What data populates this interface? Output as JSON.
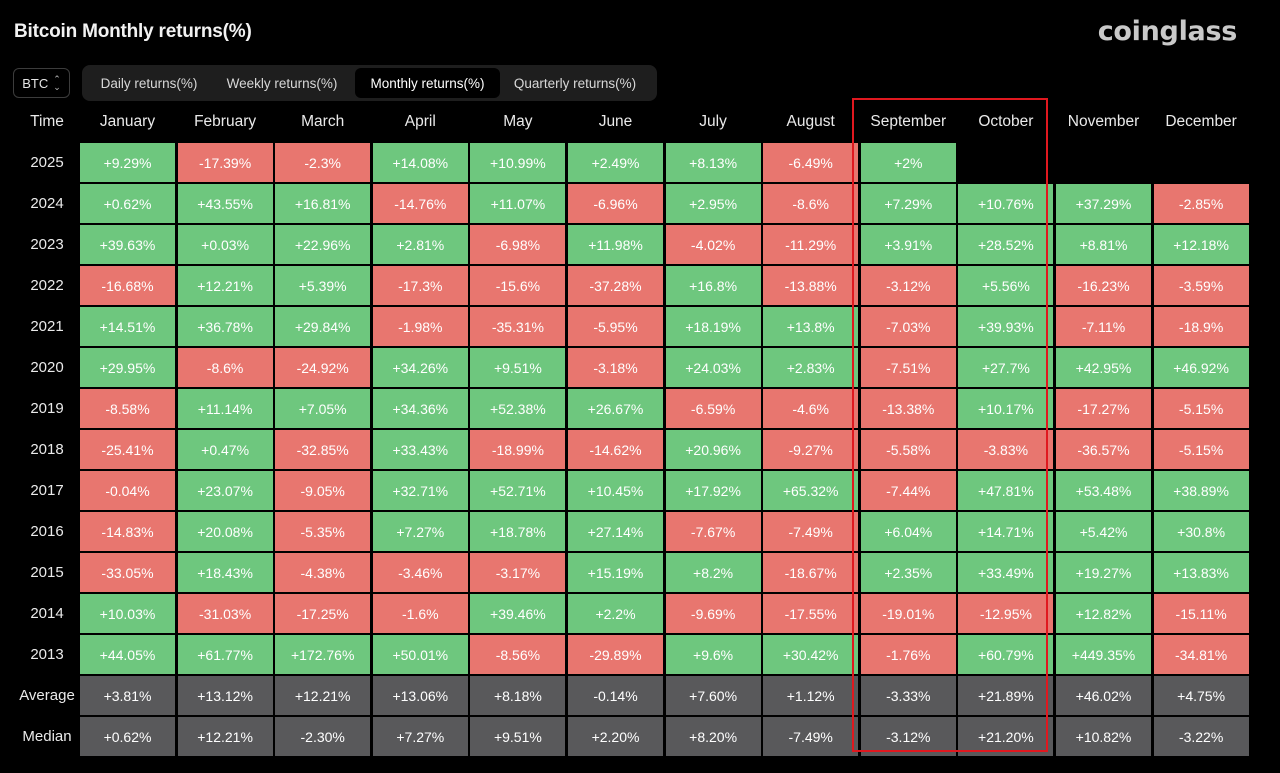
{
  "title": "Bitcoin Monthly returns(%)",
  "brand": "coinglass",
  "asset_select": {
    "value": "BTC",
    "icon": "chevron-updown-icon"
  },
  "tabs": [
    {
      "label": "Daily returns(%)",
      "active": false
    },
    {
      "label": "Weekly returns(%)",
      "active": false
    },
    {
      "label": "Monthly returns(%)",
      "active": true
    },
    {
      "label": "Quarterly returns(%)",
      "active": false
    }
  ],
  "colors": {
    "positive": "#6ec77e",
    "negative": "#e8766f",
    "stat": "#59595b",
    "highlight": "#e0181f"
  },
  "table": {
    "corner": "Time",
    "months": [
      "January",
      "February",
      "March",
      "April",
      "May",
      "June",
      "July",
      "August",
      "September",
      "October",
      "November",
      "December"
    ],
    "rows": [
      {
        "label": "2025",
        "values": [
          "+9.29%",
          "-17.39%",
          "-2.3%",
          "+14.08%",
          "+10.99%",
          "+2.49%",
          "+8.13%",
          "-6.49%",
          "+2%",
          "",
          "",
          ""
        ]
      },
      {
        "label": "2024",
        "values": [
          "+0.62%",
          "+43.55%",
          "+16.81%",
          "-14.76%",
          "+11.07%",
          "-6.96%",
          "+2.95%",
          "-8.6%",
          "+7.29%",
          "+10.76%",
          "+37.29%",
          "-2.85%"
        ]
      },
      {
        "label": "2023",
        "values": [
          "+39.63%",
          "+0.03%",
          "+22.96%",
          "+2.81%",
          "-6.98%",
          "+11.98%",
          "-4.02%",
          "-11.29%",
          "+3.91%",
          "+28.52%",
          "+8.81%",
          "+12.18%"
        ]
      },
      {
        "label": "2022",
        "values": [
          "-16.68%",
          "+12.21%",
          "+5.39%",
          "-17.3%",
          "-15.6%",
          "-37.28%",
          "+16.8%",
          "-13.88%",
          "-3.12%",
          "+5.56%",
          "-16.23%",
          "-3.59%"
        ]
      },
      {
        "label": "2021",
        "values": [
          "+14.51%",
          "+36.78%",
          "+29.84%",
          "-1.98%",
          "-35.31%",
          "-5.95%",
          "+18.19%",
          "+13.8%",
          "-7.03%",
          "+39.93%",
          "-7.11%",
          "-18.9%"
        ]
      },
      {
        "label": "2020",
        "values": [
          "+29.95%",
          "-8.6%",
          "-24.92%",
          "+34.26%",
          "+9.51%",
          "-3.18%",
          "+24.03%",
          "+2.83%",
          "-7.51%",
          "+27.7%",
          "+42.95%",
          "+46.92%"
        ]
      },
      {
        "label": "2019",
        "values": [
          "-8.58%",
          "+11.14%",
          "+7.05%",
          "+34.36%",
          "+52.38%",
          "+26.67%",
          "-6.59%",
          "-4.6%",
          "-13.38%",
          "+10.17%",
          "-17.27%",
          "-5.15%"
        ]
      },
      {
        "label": "2018",
        "values": [
          "-25.41%",
          "+0.47%",
          "-32.85%",
          "+33.43%",
          "-18.99%",
          "-14.62%",
          "+20.96%",
          "-9.27%",
          "-5.58%",
          "-3.83%",
          "-36.57%",
          "-5.15%"
        ]
      },
      {
        "label": "2017",
        "values": [
          "-0.04%",
          "+23.07%",
          "-9.05%",
          "+32.71%",
          "+52.71%",
          "+10.45%",
          "+17.92%",
          "+65.32%",
          "-7.44%",
          "+47.81%",
          "+53.48%",
          "+38.89%"
        ]
      },
      {
        "label": "2016",
        "values": [
          "-14.83%",
          "+20.08%",
          "-5.35%",
          "+7.27%",
          "+18.78%",
          "+27.14%",
          "-7.67%",
          "-7.49%",
          "+6.04%",
          "+14.71%",
          "+5.42%",
          "+30.8%"
        ]
      },
      {
        "label": "2015",
        "values": [
          "-33.05%",
          "+18.43%",
          "-4.38%",
          "-3.46%",
          "-3.17%",
          "+15.19%",
          "+8.2%",
          "-18.67%",
          "+2.35%",
          "+33.49%",
          "+19.27%",
          "+13.83%"
        ]
      },
      {
        "label": "2014",
        "values": [
          "+10.03%",
          "-31.03%",
          "-17.25%",
          "-1.6%",
          "+39.46%",
          "+2.2%",
          "-9.69%",
          "-17.55%",
          "-19.01%",
          "-12.95%",
          "+12.82%",
          "-15.11%"
        ]
      },
      {
        "label": "2013",
        "values": [
          "+44.05%",
          "+61.77%",
          "+172.76%",
          "+50.01%",
          "-8.56%",
          "-29.89%",
          "+9.6%",
          "+30.42%",
          "-1.76%",
          "+60.79%",
          "+449.35%",
          "-34.81%"
        ]
      }
    ],
    "stats": [
      {
        "label": "Average",
        "values": [
          "+3.81%",
          "+13.12%",
          "+12.21%",
          "+13.06%",
          "+8.18%",
          "-0.14%",
          "+7.60%",
          "+1.12%",
          "-3.33%",
          "+21.89%",
          "+46.02%",
          "+4.75%"
        ]
      },
      {
        "label": "Median",
        "values": [
          "+0.62%",
          "+12.21%",
          "-2.30%",
          "+7.27%",
          "+9.51%",
          "+2.20%",
          "+8.20%",
          "-7.49%",
          "-3.12%",
          "+21.20%",
          "+10.82%",
          "-3.22%"
        ]
      }
    ]
  }
}
